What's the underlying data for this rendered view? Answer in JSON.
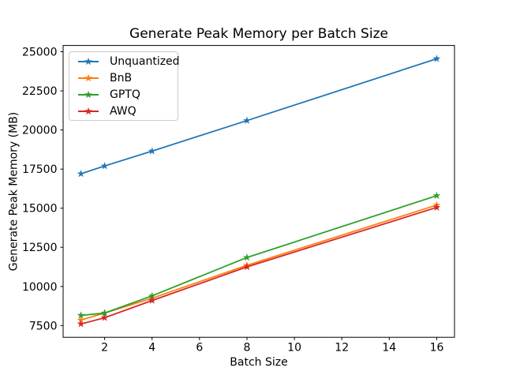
{
  "figure": {
    "background": "#ffffff"
  },
  "chart_data": {
    "type": "line",
    "title": "Generate Peak Memory per Batch Size",
    "xlabel": "Batch Size",
    "ylabel": "Generate Peak Memory (MB)",
    "x": [
      1,
      2,
      4,
      8,
      16
    ],
    "series": [
      {
        "name": "Unquantized",
        "color": "#1f77b4",
        "values": [
          17200,
          17700,
          18650,
          20600,
          24550
        ]
      },
      {
        "name": "BnB",
        "color": "#ff7f0e",
        "values": [
          7850,
          8300,
          9250,
          11350,
          15200
        ]
      },
      {
        "name": "GPTQ",
        "color": "#2ca02c",
        "values": [
          8150,
          8300,
          9400,
          11850,
          15800
        ]
      },
      {
        "name": "AWQ",
        "color": "#d62728",
        "values": [
          7600,
          8000,
          9100,
          11250,
          15050
        ]
      }
    ],
    "xticks": [
      2,
      4,
      6,
      8,
      10,
      12,
      14,
      16
    ],
    "yticks": [
      7500,
      10000,
      12500,
      15000,
      17500,
      20000,
      22500,
      25000
    ],
    "xlim": [
      0.25,
      16.75
    ],
    "ylim": [
      6750,
      25400
    ],
    "grid": false,
    "marker": "star",
    "legend_position": "upper left",
    "axis_color": "#000000"
  }
}
